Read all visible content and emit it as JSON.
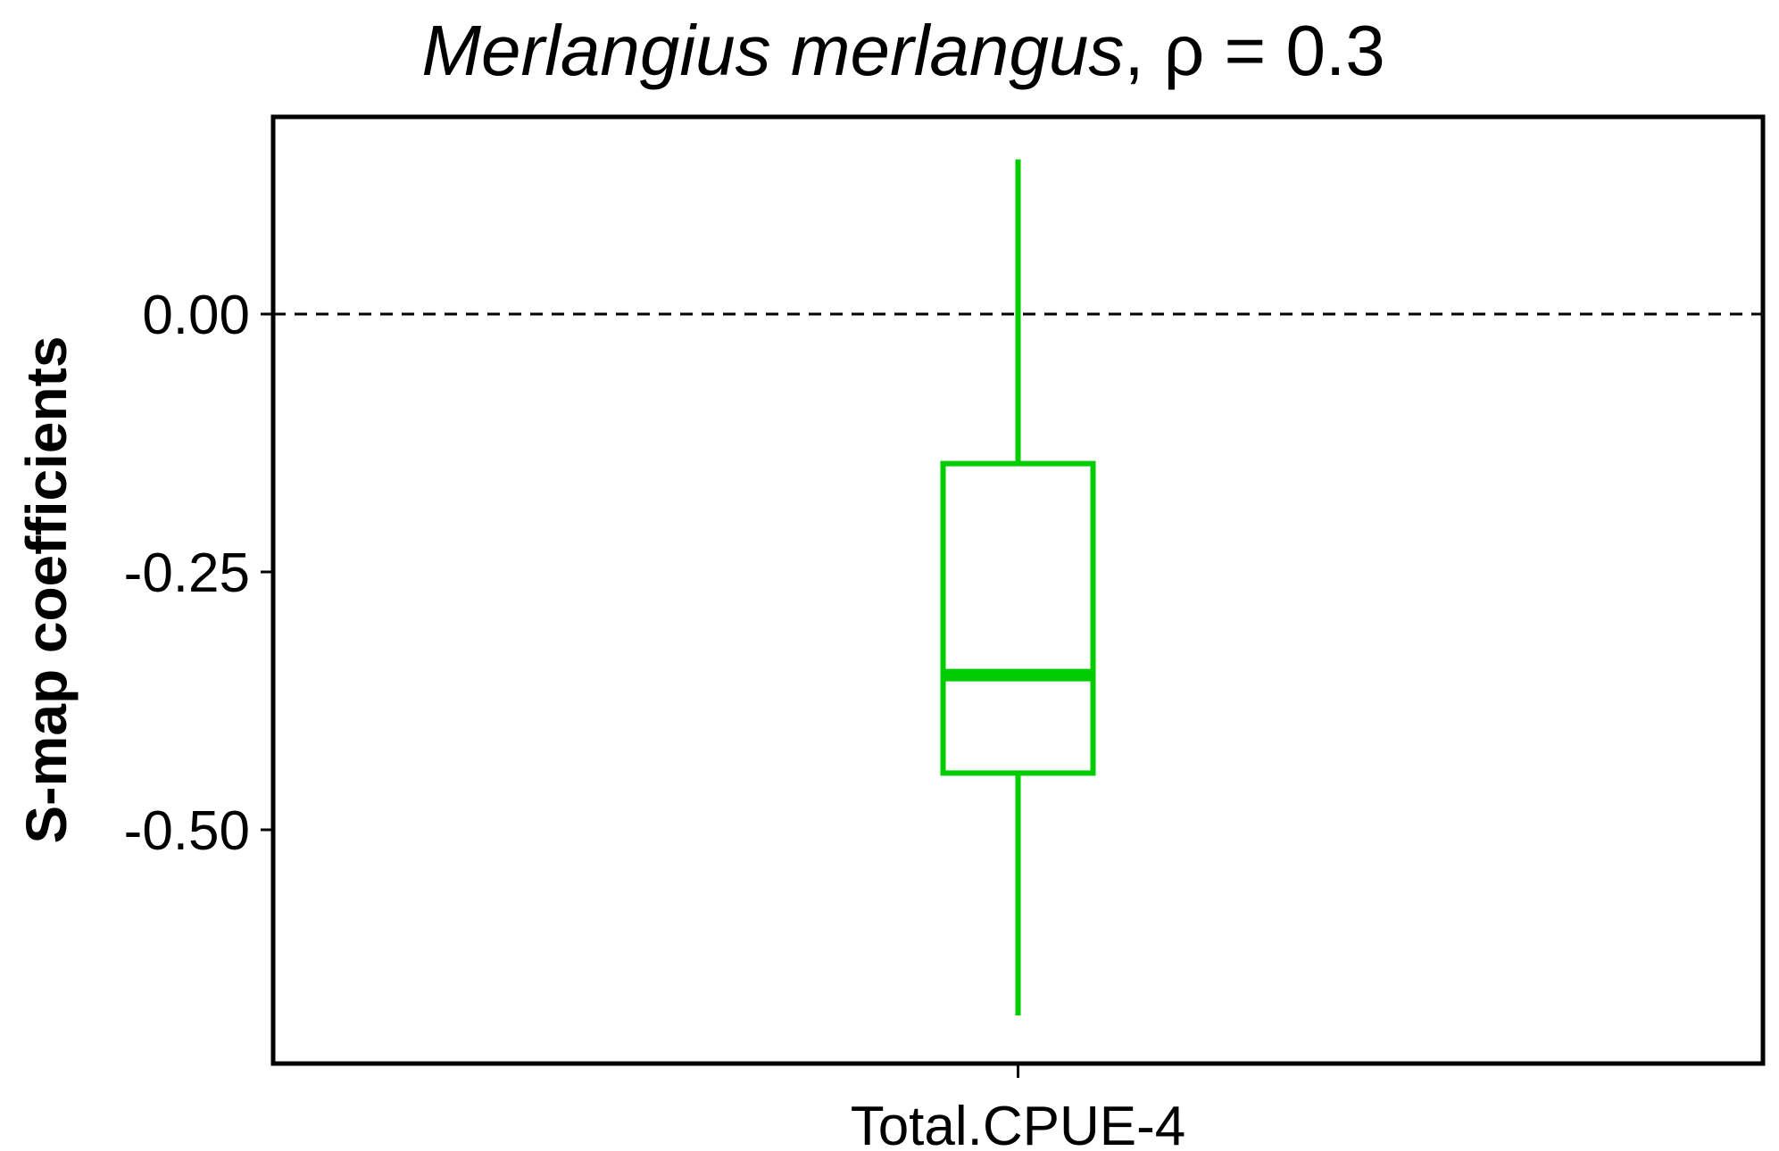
{
  "chart_data": {
    "type": "box",
    "title": {
      "species": "Merlangius merlangus",
      "suffix": ", ρ = 0.3"
    },
    "xlabel": "",
    "ylabel": "S-map coefficients",
    "categories": [
      "Total.CPUE-4"
    ],
    "boxes": [
      {
        "category": "Total.CPUE-4",
        "whisker_low": -0.68,
        "q1": -0.445,
        "median": -0.35,
        "q3": -0.145,
        "whisker_high": 0.15,
        "color": "#00CC00"
      }
    ],
    "ylim": [
      -0.72,
      0.19
    ],
    "yticks": [
      0.0,
      -0.25,
      -0.5
    ],
    "ytick_labels": [
      "0.00",
      "-0.25",
      "-0.50"
    ],
    "reference_line": {
      "y": 0.0,
      "style": "dashed"
    },
    "grid": false,
    "legend": "none"
  }
}
